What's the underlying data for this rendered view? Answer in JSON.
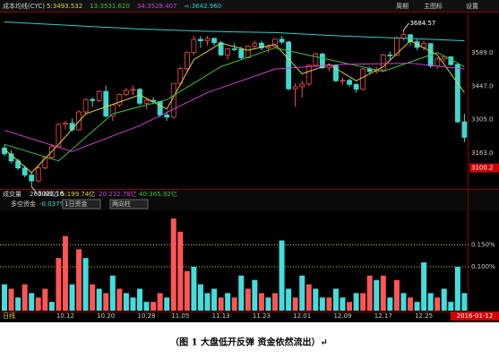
{
  "chart_data": [
    {
      "type": "candlestick",
      "title": "成本均线(CYC)",
      "toolbar": [
        "周期",
        "主图标",
        "设置"
      ],
      "ylim": [
        3015,
        3760
      ],
      "yticks": [
        {
          "value": 3589,
          "label": "3589.0"
        },
        {
          "value": 3447,
          "label": "3447.0"
        },
        {
          "value": 3305,
          "label": "3305.0"
        },
        {
          "value": 3163,
          "label": "3163.0"
        }
      ],
      "current_price": {
        "value": 3100.2,
        "label": "3100.2"
      },
      "high_mark": {
        "index": 59,
        "value": 3684.57,
        "label": "3684.57"
      },
      "low_mark": {
        "index": 4,
        "value": 3021.16,
        "label": "3021.16"
      },
      "up_color": "#ff4d4d",
      "down_color": "#3fd8d0",
      "candles": [
        [
          3185,
          3200,
          3150,
          3160
        ],
        [
          3160,
          3175,
          3120,
          3130
        ],
        [
          3130,
          3140,
          3090,
          3100
        ],
        [
          3100,
          3110,
          3060,
          3070
        ],
        [
          3070,
          3080,
          3021,
          3045
        ],
        [
          3045,
          3110,
          3040,
          3100
        ],
        [
          3100,
          3150,
          3095,
          3145
        ],
        [
          3145,
          3200,
          3140,
          3190
        ],
        [
          3190,
          3290,
          3185,
          3285
        ],
        [
          3285,
          3300,
          3265,
          3290
        ],
        [
          3290,
          3310,
          3255,
          3262
        ],
        [
          3262,
          3345,
          3258,
          3338
        ],
        [
          3338,
          3395,
          3330,
          3391
        ],
        [
          3391,
          3400,
          3360,
          3386
        ],
        [
          3386,
          3430,
          3380,
          3425
        ],
        [
          3425,
          3450,
          3315,
          3320
        ],
        [
          3320,
          3370,
          3300,
          3368
        ],
        [
          3368,
          3415,
          3360,
          3412
        ],
        [
          3412,
          3440,
          3405,
          3429
        ],
        [
          3429,
          3450,
          3410,
          3434
        ],
        [
          3434,
          3440,
          3365,
          3375
        ],
        [
          3375,
          3395,
          3350,
          3387
        ],
        [
          3387,
          3400,
          3370,
          3382
        ],
        [
          3382,
          3385,
          3315,
          3325
        ],
        [
          3325,
          3340,
          3300,
          3316
        ],
        [
          3316,
          3460,
          3310,
          3459
        ],
        [
          3459,
          3530,
          3450,
          3522
        ],
        [
          3522,
          3595,
          3510,
          3590
        ],
        [
          3590,
          3660,
          3580,
          3646
        ],
        [
          3646,
          3660,
          3610,
          3640
        ],
        [
          3640,
          3660,
          3620,
          3650
        ],
        [
          3650,
          3655,
          3620,
          3632
        ],
        [
          3632,
          3640,
          3575,
          3580
        ],
        [
          3580,
          3610,
          3560,
          3606
        ],
        [
          3606,
          3630,
          3595,
          3604
        ],
        [
          3604,
          3615,
          3560,
          3568
        ],
        [
          3568,
          3620,
          3565,
          3617
        ],
        [
          3617,
          3640,
          3605,
          3630
        ],
        [
          3630,
          3640,
          3600,
          3610
        ],
        [
          3610,
          3625,
          3590,
          3616
        ],
        [
          3616,
          3650,
          3610,
          3647
        ],
        [
          3647,
          3660,
          3625,
          3635
        ],
        [
          3635,
          3640,
          3430,
          3436
        ],
        [
          3436,
          3460,
          3360,
          3445
        ],
        [
          3445,
          3470,
          3400,
          3456
        ],
        [
          3456,
          3540,
          3450,
          3536
        ],
        [
          3536,
          3590,
          3530,
          3584
        ],
        [
          3584,
          3590,
          3520,
          3525
        ],
        [
          3525,
          3545,
          3510,
          3536
        ],
        [
          3536,
          3540,
          3465,
          3470
        ],
        [
          3470,
          3485,
          3455,
          3472
        ],
        [
          3472,
          3480,
          3445,
          3455
        ],
        [
          3455,
          3460,
          3420,
          3434
        ],
        [
          3434,
          3525,
          3430,
          3520
        ],
        [
          3520,
          3530,
          3500,
          3510
        ],
        [
          3510,
          3530,
          3500,
          3516
        ],
        [
          3516,
          3585,
          3510,
          3580
        ],
        [
          3580,
          3595,
          3560,
          3578
        ],
        [
          3578,
          3660,
          3575,
          3651
        ],
        [
          3651,
          3685,
          3640,
          3666
        ],
        [
          3666,
          3670,
          3620,
          3636
        ],
        [
          3636,
          3645,
          3600,
          3612
        ],
        [
          3612,
          3640,
          3600,
          3628
        ],
        [
          3628,
          3630,
          3525,
          3533
        ],
        [
          3533,
          3570,
          3520,
          3563
        ],
        [
          3563,
          3580,
          3550,
          3572
        ],
        [
          3572,
          3575,
          3535,
          3539
        ],
        [
          3539,
          3545,
          3290,
          3296
        ],
        [
          3296,
          3330,
          3210,
          3230
        ]
      ],
      "series": [
        {
          "name": "5:3493.532",
          "color": "#e0d040",
          "x": [
            0,
            4,
            8,
            12,
            16,
            20,
            24,
            28,
            32,
            36,
            40,
            44,
            48,
            52,
            56,
            60,
            64,
            68
          ],
          "values": [
            3180,
            3080,
            3200,
            3330,
            3370,
            3410,
            3350,
            3560,
            3630,
            3600,
            3625,
            3500,
            3540,
            3470,
            3530,
            3640,
            3580,
            3420
          ]
        },
        {
          "name": "13:3531.620",
          "color": "#40c040",
          "x": [
            0,
            8,
            16,
            24,
            32,
            40,
            48,
            56,
            64,
            68
          ],
          "values": [
            3200,
            3130,
            3330,
            3390,
            3530,
            3610,
            3560,
            3510,
            3590,
            3530
          ]
        },
        {
          "name": "34:3528.407",
          "color": "#d040d0",
          "x": [
            0,
            10,
            20,
            30,
            40,
            50,
            60,
            68
          ],
          "values": [
            3260,
            3170,
            3280,
            3420,
            3520,
            3540,
            3545,
            3520
          ]
        },
        {
          "name": "∞:3642.960",
          "color": "#2fd0c8",
          "x": [
            0,
            10,
            20,
            30,
            40,
            50,
            60,
            68
          ],
          "values": [
            3720,
            3705,
            3690,
            3680,
            3675,
            3660,
            3650,
            3640
          ]
        }
      ],
      "xticks": [
        {
          "value": 9,
          "label": "10.12"
        },
        {
          "value": 15,
          "label": "10.20"
        },
        {
          "value": 21,
          "label": "10.28"
        },
        {
          "value": 26,
          "label": "11.05"
        },
        {
          "value": 32,
          "label": "11.13"
        },
        {
          "value": 38,
          "label": "11.23"
        },
        {
          "value": 44,
          "label": "12.01"
        },
        {
          "value": 50,
          "label": "12.09"
        },
        {
          "value": 56,
          "label": "12.17"
        },
        {
          "value": 62,
          "label": "12.25"
        }
      ],
      "period_label": "日线",
      "cursor_date": "2016-01-12"
    },
    {
      "type": "bar",
      "header": [
        "成交量",
        "266.88亿",
        "5:199.74亿",
        "20:232.78亿",
        "40:365.92亿"
      ],
      "title": "多空资金",
      "title_value": "-0.037%",
      "selectors": [
        "1日资金",
        "两向柱"
      ],
      "ylim": [
        0,
        0.22
      ],
      "yticks": [
        {
          "value": 0.15,
          "label": "0.150%"
        },
        {
          "value": 0.1,
          "label": "0.100%"
        }
      ],
      "values": [
        0.06,
        0.05,
        0.03,
        0.06,
        0.04,
        0.03,
        0.05,
        0.02,
        0.12,
        0.17,
        0.06,
        0.14,
        0.12,
        0.06,
        0.05,
        0.04,
        0.08,
        0.05,
        0.04,
        0.03,
        0.05,
        0.02,
        0.02,
        0.04,
        0.03,
        0.21,
        0.18,
        0.09,
        0.1,
        0.06,
        0.04,
        0.05,
        0.03,
        0.04,
        0.03,
        0.08,
        0.05,
        0.07,
        0.04,
        0.03,
        0.04,
        0.16,
        0.05,
        0.03,
        0.08,
        0.06,
        0.05,
        0.03,
        0.03,
        0.05,
        0.03,
        0.02,
        0.04,
        0.04,
        0.08,
        0.07,
        0.08,
        0.03,
        0.07,
        0.04,
        0.03,
        0.02,
        0.11,
        0.04,
        0.03,
        0.05,
        0.02,
        0.1,
        0.04
      ],
      "colors": [
        "#4dd",
        "#f55",
        "#4dd",
        "#f55",
        "#4dd",
        "#f55",
        "#f55",
        "#4dd",
        "#f55",
        "#f55",
        "#4dd",
        "#f55",
        "#4dd",
        "#f55",
        "#4dd",
        "#f55",
        "#4dd",
        "#f55",
        "#4dd",
        "#4dd",
        "#4dd",
        "#4dd",
        "#f55",
        "#f55",
        "#4dd",
        "#f55",
        "#f55",
        "#f55",
        "#4dd",
        "#4dd",
        "#4dd",
        "#4dd",
        "#f55",
        "#4dd",
        "#f55",
        "#4dd",
        "#f55",
        "#4dd",
        "#f55",
        "#4dd",
        "#f55",
        "#4dd",
        "#4dd",
        "#f55",
        "#4dd",
        "#f55",
        "#4dd",
        "#4dd",
        "#f55",
        "#4dd",
        "#4dd",
        "#f55",
        "#4dd",
        "#f55",
        "#f55",
        "#4dd",
        "#f55",
        "#4dd",
        "#f55",
        "#4dd",
        "#f55",
        "#4dd",
        "#4dd",
        "#4dd",
        "#f55",
        "#4dd",
        "#4dd",
        "#4dd",
        "#4dd"
      ]
    }
  ],
  "caption": "（图 1  大盘低开反弹  资金依然流出）↵"
}
